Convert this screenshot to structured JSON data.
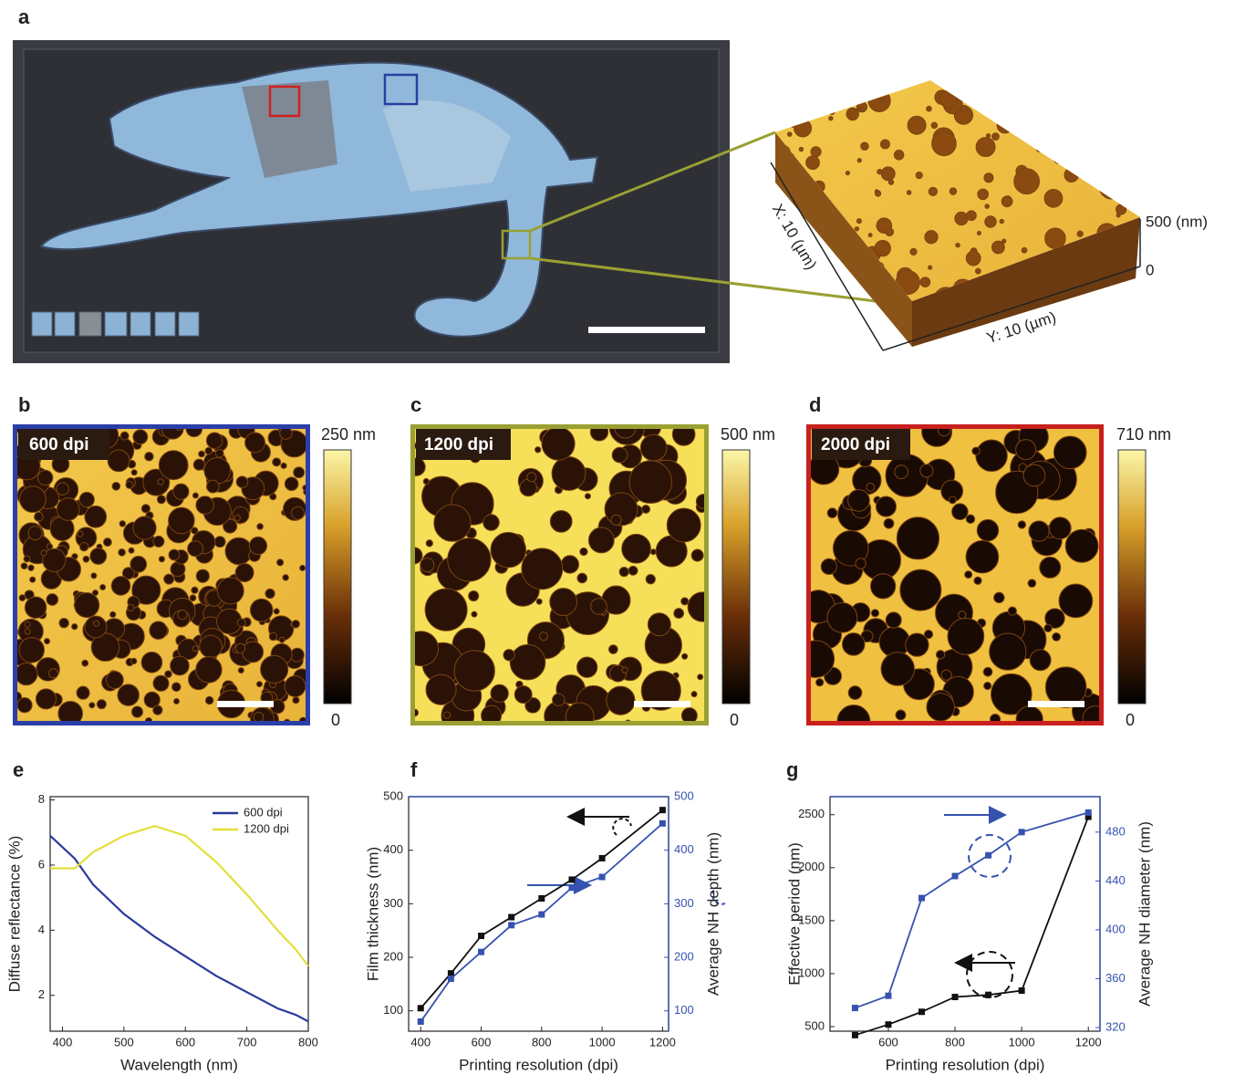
{
  "panel_labels": [
    "a",
    "b",
    "c",
    "d",
    "e",
    "f",
    "g"
  ],
  "afm_3d": {
    "z_max": "500 (nm)",
    "z_min": "0",
    "x_axis": "X: 10 (µm)",
    "y_axis": "Y: 10 (µm)"
  },
  "afm_maps": [
    {
      "label": "600 dpi",
      "scale_max": "250 nm",
      "scale_min": "0"
    },
    {
      "label": "1200 dpi",
      "scale_max": "500 nm",
      "scale_min": "0"
    },
    {
      "label": "2000 dpi",
      "scale_max": "710 nm",
      "scale_min": "0"
    }
  ],
  "chart_data": [
    {
      "type": "line",
      "xlabel": "Wavelength (nm)",
      "ylabel": "Diffuse reflectance (%)",
      "x": [
        380,
        420,
        450,
        500,
        550,
        600,
        650,
        700,
        750,
        780,
        800
      ],
      "series": [
        {
          "name": "600 dpi",
          "color": "#2b3a9b",
          "values": [
            6.9,
            6.2,
            5.4,
            4.5,
            3.8,
            3.2,
            2.6,
            2.1,
            1.6,
            1.4,
            1.2
          ]
        },
        {
          "name": "1200 dpi",
          "color": "#e3df3a",
          "values": [
            5.9,
            5.9,
            6.4,
            6.9,
            7.2,
            6.9,
            6.1,
            5.1,
            4.0,
            3.4,
            2.9
          ]
        }
      ],
      "xlim": [
        380,
        800
      ],
      "xticks": [
        400,
        500,
        600,
        700,
        800
      ],
      "ylim": [
        0.9,
        8.1
      ],
      "yticks": [
        2,
        4,
        6,
        8
      ],
      "legend": "upper right"
    },
    {
      "type": "line",
      "xlabel": "Printing resolution (dpi)",
      "ylabel": "Film thickness (nm)",
      "y2label": "Average NH depth (nm)",
      "x": [
        400,
        500,
        600,
        700,
        800,
        900,
        1000,
        1200
      ],
      "series": [
        {
          "color": "#111111",
          "values": [
            105,
            170,
            240,
            275,
            310,
            345,
            385,
            475
          ]
        },
        {
          "color": "#3552b0",
          "axis": "y2",
          "values": [
            80,
            160,
            210,
            260,
            280,
            330,
            350,
            450
          ]
        }
      ],
      "xlim": [
        360,
        1220
      ],
      "xticks": [
        400,
        600,
        800,
        1000,
        1200
      ],
      "ylim": [
        62,
        500
      ],
      "yticks": [
        100,
        200,
        300,
        400,
        500
      ],
      "y2lim": [
        62,
        500
      ],
      "y2ticks": [
        100,
        200,
        300,
        400,
        500
      ],
      "y2color": "#3552b0",
      "marker": "square"
    },
    {
      "type": "line",
      "xlabel": "Printing resolution (dpi)",
      "ylabel": "Effective period (nm)",
      "y2label": "Average NH diameter (nm)",
      "x": [
        500,
        600,
        700,
        800,
        900,
        1000,
        1200
      ],
      "series": [
        {
          "color": "#111111",
          "values": [
            420,
            520,
            640,
            780,
            800,
            840,
            2480
          ]
        },
        {
          "color": "#3552b0",
          "axis": "y2",
          "values": [
            336,
            346,
            426,
            444,
            461,
            480,
            496
          ]
        }
      ],
      "xlim": [
        425,
        1235
      ],
      "xticks": [
        600,
        800,
        1000,
        1200
      ],
      "ylim": [
        457,
        2670
      ],
      "yticks": [
        500,
        1000,
        1500,
        2000,
        2500
      ],
      "y2lim": [
        317,
        509
      ],
      "y2ticks": [
        320,
        360,
        400,
        440,
        480
      ],
      "y2color": "#3552b0",
      "marker": "square"
    }
  ]
}
